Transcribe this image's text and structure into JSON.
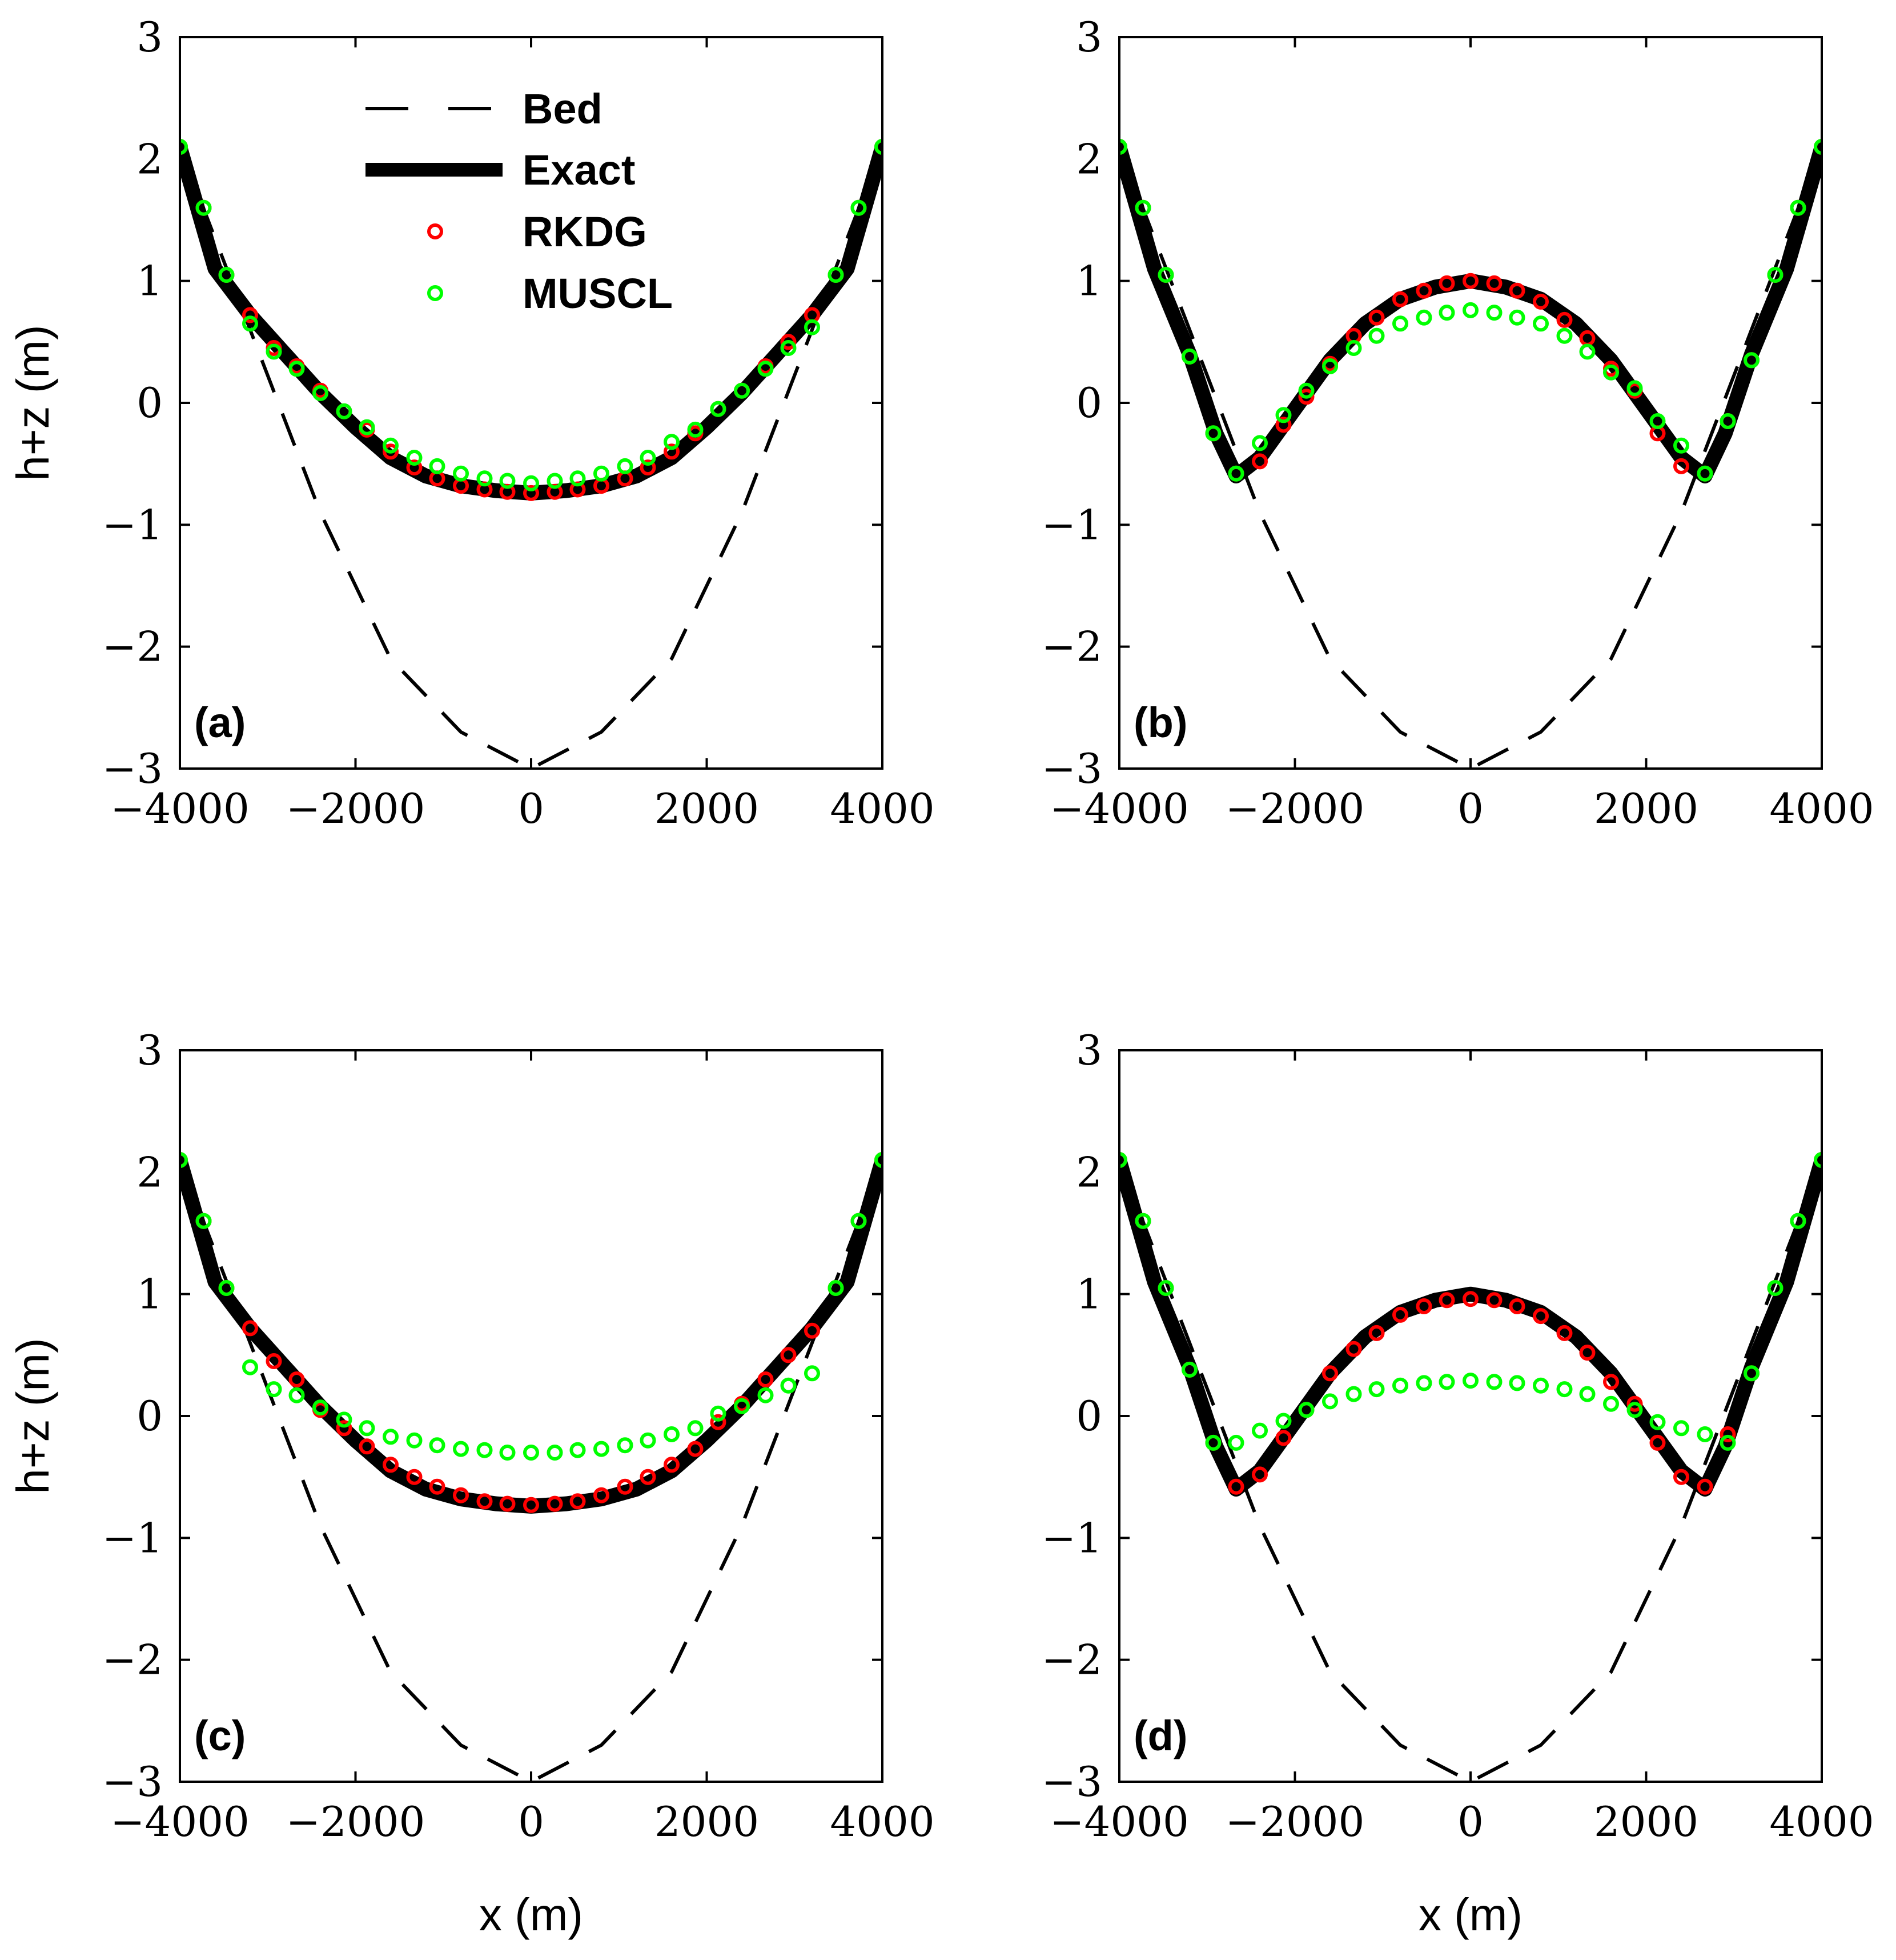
{
  "legend": {
    "placement": "top-center of panel (a)",
    "entries": [
      "Bed",
      "Exact",
      "RKDG",
      "MUSCL"
    ]
  },
  "colors": {
    "bed": "#000000",
    "exact": "#000000",
    "rkdg": "#ff0000",
    "muscl": "#00ff00"
  },
  "chart_data": [
    {
      "type": "line",
      "panel_label": "(a)",
      "xlabel": "",
      "ylabel": "h+z (m)",
      "xlim": [
        -4000,
        4000
      ],
      "ylim": [
        -3,
        3
      ],
      "xticks": [
        "−4000",
        "−2000",
        "0",
        "2000",
        "4000"
      ],
      "yticks": [
        "−3",
        "−2",
        "−1",
        "0",
        "1",
        "2",
        "3"
      ],
      "series": [
        {
          "name": "Bed",
          "style": "dashed",
          "x": [
            -4000,
            -3200,
            -2400,
            -1600,
            -800,
            0,
            800,
            1600,
            2400,
            3200,
            4000
          ],
          "y": [
            2.1,
            0.6,
            -0.9,
            -2.1,
            -2.7,
            -3.0,
            -2.7,
            -2.1,
            -0.9,
            0.6,
            2.1
          ]
        },
        {
          "name": "Exact",
          "style": "thick",
          "x": [
            -4000,
            -3600,
            -3200,
            -2800,
            -2400,
            -2000,
            -1600,
            -1200,
            -800,
            -400,
            0,
            400,
            800,
            1200,
            1600,
            2000,
            2400,
            2800,
            3200,
            3600,
            4000
          ],
          "y": [
            2.1,
            1.1,
            0.72,
            0.4,
            0.08,
            -0.2,
            -0.45,
            -0.6,
            -0.68,
            -0.72,
            -0.74,
            -0.72,
            -0.68,
            -0.6,
            -0.45,
            -0.2,
            0.08,
            0.4,
            0.72,
            1.1,
            2.1
          ]
        },
        {
          "name": "RKDG",
          "style": "markers",
          "x": [
            -4000,
            -3730,
            -3470,
            -3200,
            -2930,
            -2670,
            -2400,
            -2130,
            -1870,
            -1600,
            -1330,
            -1070,
            -800,
            -530,
            -270,
            0,
            270,
            530,
            800,
            1070,
            1330,
            1600,
            1870,
            2130,
            2400,
            2670,
            2930,
            3200,
            3470,
            3730,
            4000
          ],
          "y": [
            2.1,
            1.6,
            1.05,
            0.72,
            0.45,
            0.3,
            0.1,
            -0.07,
            -0.22,
            -0.4,
            -0.53,
            -0.62,
            -0.68,
            -0.71,
            -0.73,
            -0.74,
            -0.73,
            -0.71,
            -0.68,
            -0.62,
            -0.53,
            -0.4,
            -0.25,
            -0.05,
            0.1,
            0.3,
            0.5,
            0.72,
            1.05,
            1.6,
            2.1
          ]
        },
        {
          "name": "MUSCL",
          "style": "markers",
          "x": [
            -4000,
            -3730,
            -3470,
            -3200,
            -2930,
            -2670,
            -2400,
            -2130,
            -1870,
            -1600,
            -1330,
            -1070,
            -800,
            -530,
            -270,
            0,
            270,
            530,
            800,
            1070,
            1330,
            1600,
            1870,
            2130,
            2400,
            2670,
            2930,
            3200,
            3470,
            3730,
            4000
          ],
          "y": [
            2.1,
            1.6,
            1.05,
            0.65,
            0.42,
            0.28,
            0.08,
            -0.07,
            -0.2,
            -0.35,
            -0.45,
            -0.52,
            -0.58,
            -0.62,
            -0.64,
            -0.66,
            -0.64,
            -0.62,
            -0.58,
            -0.52,
            -0.45,
            -0.32,
            -0.22,
            -0.05,
            0.1,
            0.28,
            0.45,
            0.62,
            1.05,
            1.6,
            2.1
          ]
        }
      ]
    },
    {
      "type": "line",
      "panel_label": "(b)",
      "xlabel": "",
      "ylabel": "",
      "xlim": [
        -4000,
        4000
      ],
      "ylim": [
        -3,
        3
      ],
      "xticks": [
        "−4000",
        "−2000",
        "0",
        "2000",
        "4000"
      ],
      "yticks": [
        "−3",
        "−2",
        "−1",
        "0",
        "1",
        "2",
        "3"
      ],
      "series": [
        {
          "name": "Bed",
          "style": "dashed",
          "x": [
            -4000,
            -3200,
            -2400,
            -1600,
            -800,
            0,
            800,
            1600,
            2400,
            3200,
            4000
          ],
          "y": [
            2.1,
            0.6,
            -0.9,
            -2.1,
            -2.7,
            -3.0,
            -2.7,
            -2.1,
            -0.9,
            0.6,
            2.1
          ]
        },
        {
          "name": "Exact",
          "style": "thick",
          "x": [
            -4000,
            -3600,
            -3200,
            -2900,
            -2670,
            -2400,
            -2000,
            -1600,
            -1200,
            -800,
            -400,
            0,
            400,
            800,
            1200,
            1600,
            2000,
            2400,
            2670,
            2900,
            3200,
            3600,
            4000
          ],
          "y": [
            2.1,
            1.1,
            0.4,
            -0.25,
            -0.6,
            -0.45,
            -0.05,
            0.35,
            0.65,
            0.85,
            0.95,
            1.0,
            0.95,
            0.85,
            0.65,
            0.35,
            -0.05,
            -0.45,
            -0.6,
            -0.25,
            0.4,
            1.1,
            2.1
          ]
        },
        {
          "name": "RKDG",
          "style": "markers",
          "x": [
            -4000,
            -3730,
            -3470,
            -3200,
            -2930,
            -2670,
            -2400,
            -2130,
            -1870,
            -1600,
            -1330,
            -1070,
            -800,
            -530,
            -270,
            0,
            270,
            530,
            800,
            1070,
            1330,
            1600,
            1870,
            2130,
            2400,
            2670,
            2930,
            3200,
            3470,
            3730,
            4000
          ],
          "y": [
            2.1,
            1.6,
            1.05,
            0.38,
            -0.25,
            -0.58,
            -0.48,
            -0.18,
            0.05,
            0.32,
            0.55,
            0.7,
            0.85,
            0.92,
            0.98,
            1.0,
            0.98,
            0.92,
            0.83,
            0.68,
            0.53,
            0.28,
            0.1,
            -0.25,
            -0.52,
            -0.58,
            -0.15,
            0.35,
            1.05,
            1.6,
            2.1
          ]
        },
        {
          "name": "MUSCL",
          "style": "markers",
          "x": [
            -4000,
            -3730,
            -3470,
            -3200,
            -2930,
            -2670,
            -2400,
            -2130,
            -1870,
            -1600,
            -1330,
            -1070,
            -800,
            -530,
            -270,
            0,
            270,
            530,
            800,
            1070,
            1330,
            1600,
            1870,
            2130,
            2400,
            2670,
            2930,
            3200,
            3470,
            3730,
            4000
          ],
          "y": [
            2.1,
            1.6,
            1.05,
            0.38,
            -0.25,
            -0.58,
            -0.33,
            -0.1,
            0.1,
            0.3,
            0.45,
            0.55,
            0.65,
            0.7,
            0.74,
            0.76,
            0.74,
            0.7,
            0.65,
            0.55,
            0.42,
            0.25,
            0.12,
            -0.15,
            -0.35,
            -0.58,
            -0.15,
            0.35,
            1.05,
            1.6,
            2.1
          ]
        }
      ]
    },
    {
      "type": "line",
      "panel_label": "(c)",
      "xlabel": "x (m)",
      "ylabel": "h+z (m)",
      "xlim": [
        -4000,
        4000
      ],
      "ylim": [
        -3,
        3
      ],
      "xticks": [
        "−4000",
        "−2000",
        "0",
        "2000",
        "4000"
      ],
      "yticks": [
        "−3",
        "−2",
        "−1",
        "0",
        "1",
        "2",
        "3"
      ],
      "series": [
        {
          "name": "Bed",
          "style": "dashed",
          "x": [
            -4000,
            -3200,
            -2400,
            -1600,
            -800,
            0,
            800,
            1600,
            2400,
            3200,
            4000
          ],
          "y": [
            2.1,
            0.6,
            -0.9,
            -2.1,
            -2.7,
            -3.0,
            -2.7,
            -2.1,
            -0.9,
            0.6,
            2.1
          ]
        },
        {
          "name": "Exact",
          "style": "thick",
          "x": [
            -4000,
            -3600,
            -3200,
            -2800,
            -2400,
            -2000,
            -1600,
            -1200,
            -800,
            -400,
            0,
            400,
            800,
            1200,
            1600,
            2000,
            2400,
            2800,
            3200,
            3600,
            4000
          ],
          "y": [
            2.1,
            1.1,
            0.72,
            0.4,
            0.08,
            -0.2,
            -0.45,
            -0.6,
            -0.68,
            -0.72,
            -0.74,
            -0.72,
            -0.68,
            -0.6,
            -0.45,
            -0.2,
            0.08,
            0.4,
            0.72,
            1.1,
            2.1
          ]
        },
        {
          "name": "RKDG",
          "style": "markers",
          "x": [
            -4000,
            -3730,
            -3470,
            -3200,
            -2930,
            -2670,
            -2400,
            -2130,
            -1870,
            -1600,
            -1330,
            -1070,
            -800,
            -530,
            -270,
            0,
            270,
            530,
            800,
            1070,
            1330,
            1600,
            1870,
            2130,
            2400,
            2670,
            2930,
            3200,
            3470,
            3730,
            4000
          ],
          "y": [
            2.1,
            1.6,
            1.05,
            0.72,
            0.45,
            0.3,
            0.05,
            -0.1,
            -0.25,
            -0.4,
            -0.5,
            -0.58,
            -0.65,
            -0.7,
            -0.72,
            -0.73,
            -0.72,
            -0.7,
            -0.65,
            -0.58,
            -0.5,
            -0.4,
            -0.27,
            -0.05,
            0.1,
            0.3,
            0.5,
            0.7,
            1.05,
            1.6,
            2.1
          ]
        },
        {
          "name": "MUSCL",
          "style": "markers",
          "x": [
            -4000,
            -3730,
            -3470,
            -3200,
            -2930,
            -2670,
            -2400,
            -2130,
            -1870,
            -1600,
            -1330,
            -1070,
            -800,
            -530,
            -270,
            0,
            270,
            530,
            800,
            1070,
            1330,
            1600,
            1870,
            2130,
            2400,
            2670,
            2930,
            3200,
            3470,
            3730,
            4000
          ],
          "y": [
            2.1,
            1.6,
            1.05,
            0.4,
            0.22,
            0.17,
            0.07,
            -0.03,
            -0.1,
            -0.17,
            -0.2,
            -0.24,
            -0.27,
            -0.28,
            -0.3,
            -0.3,
            -0.3,
            -0.28,
            -0.27,
            -0.24,
            -0.2,
            -0.15,
            -0.1,
            0.02,
            0.08,
            0.17,
            0.25,
            0.35,
            1.05,
            1.6,
            2.1
          ]
        }
      ]
    },
    {
      "type": "line",
      "panel_label": "(d)",
      "xlabel": "x (m)",
      "ylabel": "",
      "xlim": [
        -4000,
        4000
      ],
      "ylim": [
        -3,
        3
      ],
      "xticks": [
        "−4000",
        "−2000",
        "0",
        "2000",
        "4000"
      ],
      "yticks": [
        "−3",
        "−2",
        "−1",
        "0",
        "1",
        "2",
        "3"
      ],
      "series": [
        {
          "name": "Bed",
          "style": "dashed",
          "x": [
            -4000,
            -3200,
            -2400,
            -1600,
            -800,
            0,
            800,
            1600,
            2400,
            3200,
            4000
          ],
          "y": [
            2.1,
            0.6,
            -0.9,
            -2.1,
            -2.7,
            -3.0,
            -2.7,
            -2.1,
            -0.9,
            0.6,
            2.1
          ]
        },
        {
          "name": "Exact",
          "style": "thick",
          "x": [
            -4000,
            -3600,
            -3200,
            -2900,
            -2670,
            -2400,
            -2000,
            -1600,
            -1200,
            -800,
            -400,
            0,
            400,
            800,
            1200,
            1600,
            2000,
            2400,
            2670,
            2900,
            3200,
            3600,
            4000
          ],
          "y": [
            2.1,
            1.1,
            0.4,
            -0.25,
            -0.6,
            -0.45,
            -0.05,
            0.35,
            0.65,
            0.85,
            0.95,
            1.0,
            0.95,
            0.85,
            0.65,
            0.35,
            -0.05,
            -0.45,
            -0.6,
            -0.25,
            0.4,
            1.1,
            2.1
          ]
        },
        {
          "name": "RKDG",
          "style": "markers",
          "x": [
            -4000,
            -3730,
            -3470,
            -3200,
            -2930,
            -2670,
            -2400,
            -2130,
            -1870,
            -1600,
            -1330,
            -1070,
            -800,
            -530,
            -270,
            0,
            270,
            530,
            800,
            1070,
            1330,
            1600,
            1870,
            2130,
            2400,
            2670,
            2930,
            3200,
            3470,
            3730,
            4000
          ],
          "y": [
            2.1,
            1.6,
            1.05,
            0.38,
            -0.22,
            -0.58,
            -0.48,
            -0.18,
            0.05,
            0.35,
            0.55,
            0.68,
            0.83,
            0.9,
            0.95,
            0.96,
            0.95,
            0.9,
            0.82,
            0.68,
            0.52,
            0.28,
            0.1,
            -0.22,
            -0.5,
            -0.58,
            -0.15,
            0.35,
            1.05,
            1.6,
            2.1
          ]
        },
        {
          "name": "MUSCL",
          "style": "markers",
          "x": [
            -4000,
            -3730,
            -3470,
            -3200,
            -2930,
            -2670,
            -2400,
            -2130,
            -1870,
            -1600,
            -1330,
            -1070,
            -800,
            -530,
            -270,
            0,
            270,
            530,
            800,
            1070,
            1330,
            1600,
            1870,
            2130,
            2400,
            2670,
            2930,
            3200,
            3470,
            3730,
            4000
          ],
          "y": [
            2.1,
            1.6,
            1.05,
            0.38,
            -0.22,
            -0.22,
            -0.12,
            -0.04,
            0.05,
            0.12,
            0.18,
            0.22,
            0.25,
            0.27,
            0.28,
            0.29,
            0.28,
            0.27,
            0.25,
            0.22,
            0.18,
            0.1,
            0.05,
            -0.05,
            -0.1,
            -0.15,
            -0.22,
            0.35,
            1.05,
            1.6,
            2.1
          ]
        }
      ]
    }
  ]
}
